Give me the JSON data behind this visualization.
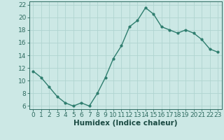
{
  "x": [
    0,
    1,
    2,
    3,
    4,
    5,
    6,
    7,
    8,
    9,
    10,
    11,
    12,
    13,
    14,
    15,
    16,
    17,
    18,
    19,
    20,
    21,
    22,
    23
  ],
  "y": [
    11.5,
    10.5,
    9.0,
    7.5,
    6.5,
    6.0,
    6.5,
    6.0,
    8.0,
    10.5,
    13.5,
    15.5,
    18.5,
    19.5,
    21.5,
    20.5,
    18.5,
    18.0,
    17.5,
    18.0,
    17.5,
    16.5,
    15.0,
    14.5
  ],
  "xlabel": "Humidex (Indice chaleur)",
  "ylim": [
    5.5,
    22.5
  ],
  "xlim": [
    -0.5,
    23.5
  ],
  "yticks": [
    6,
    8,
    10,
    12,
    14,
    16,
    18,
    20,
    22
  ],
  "xticks": [
    0,
    1,
    2,
    3,
    4,
    5,
    6,
    7,
    8,
    9,
    10,
    11,
    12,
    13,
    14,
    15,
    16,
    17,
    18,
    19,
    20,
    21,
    22,
    23
  ],
  "line_color": "#2e7d6e",
  "bg_color": "#cce8e5",
  "grid_color": "#b0d4d0",
  "tick_label_color": "#2e6b60",
  "xlabel_color": "#1a4a42",
  "xlabel_fontsize": 7.5,
  "tick_fontsize": 6.5,
  "marker": "o",
  "marker_size": 2.0,
  "line_width": 1.0
}
